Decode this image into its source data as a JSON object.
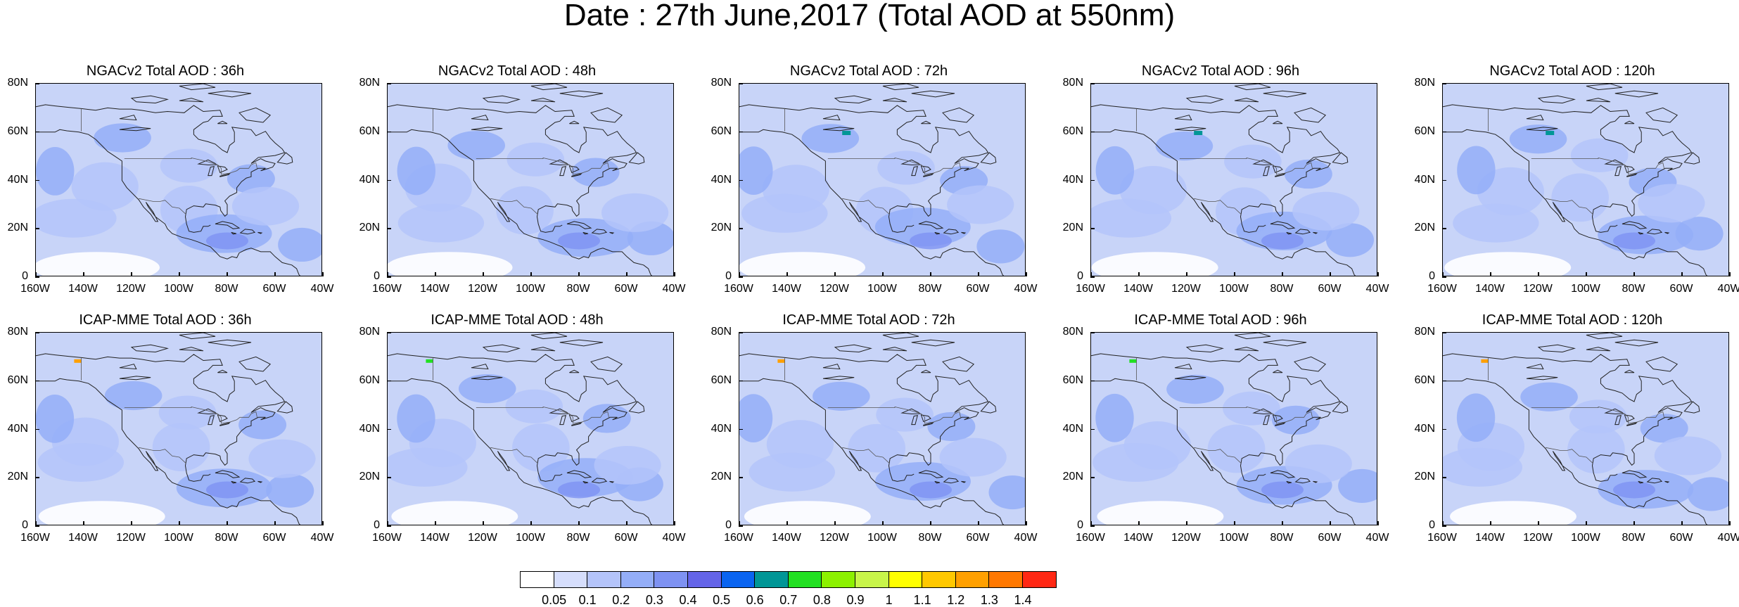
{
  "title": "Date : 27th June,2017 (Total AOD at 550nm)",
  "panels": [
    {
      "title": "NGACv2 Total AOD : 36h",
      "row": 0,
      "col": 0
    },
    {
      "title": "NGACv2 Total AOD : 48h",
      "row": 0,
      "col": 1
    },
    {
      "title": "NGACv2 Total AOD : 72h",
      "row": 0,
      "col": 2
    },
    {
      "title": "NGACv2 Total AOD : 96h",
      "row": 0,
      "col": 3
    },
    {
      "title": "NGACv2 Total AOD : 120h",
      "row": 0,
      "col": 4
    },
    {
      "title": "ICAP-MME Total AOD : 36h",
      "row": 1,
      "col": 0
    },
    {
      "title": "ICAP-MME Total AOD : 48h",
      "row": 1,
      "col": 1
    },
    {
      "title": "ICAP-MME Total AOD : 72h",
      "row": 1,
      "col": 2
    },
    {
      "title": "ICAP-MME Total AOD : 96h",
      "row": 1,
      "col": 3
    },
    {
      "title": "ICAP-MME Total AOD : 120h",
      "row": 1,
      "col": 4
    }
  ],
  "axes": {
    "lat_labels": [
      "80N",
      "60N",
      "40N",
      "20N",
      "0"
    ],
    "lon_labels": [
      "160W",
      "140W",
      "120W",
      "100W",
      "80W",
      "60W",
      "40W"
    ],
    "lat_range": [
      0,
      80
    ],
    "lon_range": [
      -160,
      -40
    ]
  },
  "colorbar": {
    "colors": [
      "#ffffff",
      "#d6defc",
      "#b4c4fa",
      "#94aef8",
      "#7e92f2",
      "#6464e8",
      "#0a64f0",
      "#009696",
      "#22e022",
      "#8cf000",
      "#c8f54a",
      "#ffff00",
      "#ffc800",
      "#ffa000",
      "#ff7800",
      "#ff2814"
    ],
    "labels": [
      "0.05",
      "0.1",
      "0.2",
      "0.3",
      "0.4",
      "0.5",
      "0.6",
      "0.7",
      "0.8",
      "0.9",
      "1",
      "1.1",
      "1.2",
      "1.3",
      "1.4"
    ]
  }
}
